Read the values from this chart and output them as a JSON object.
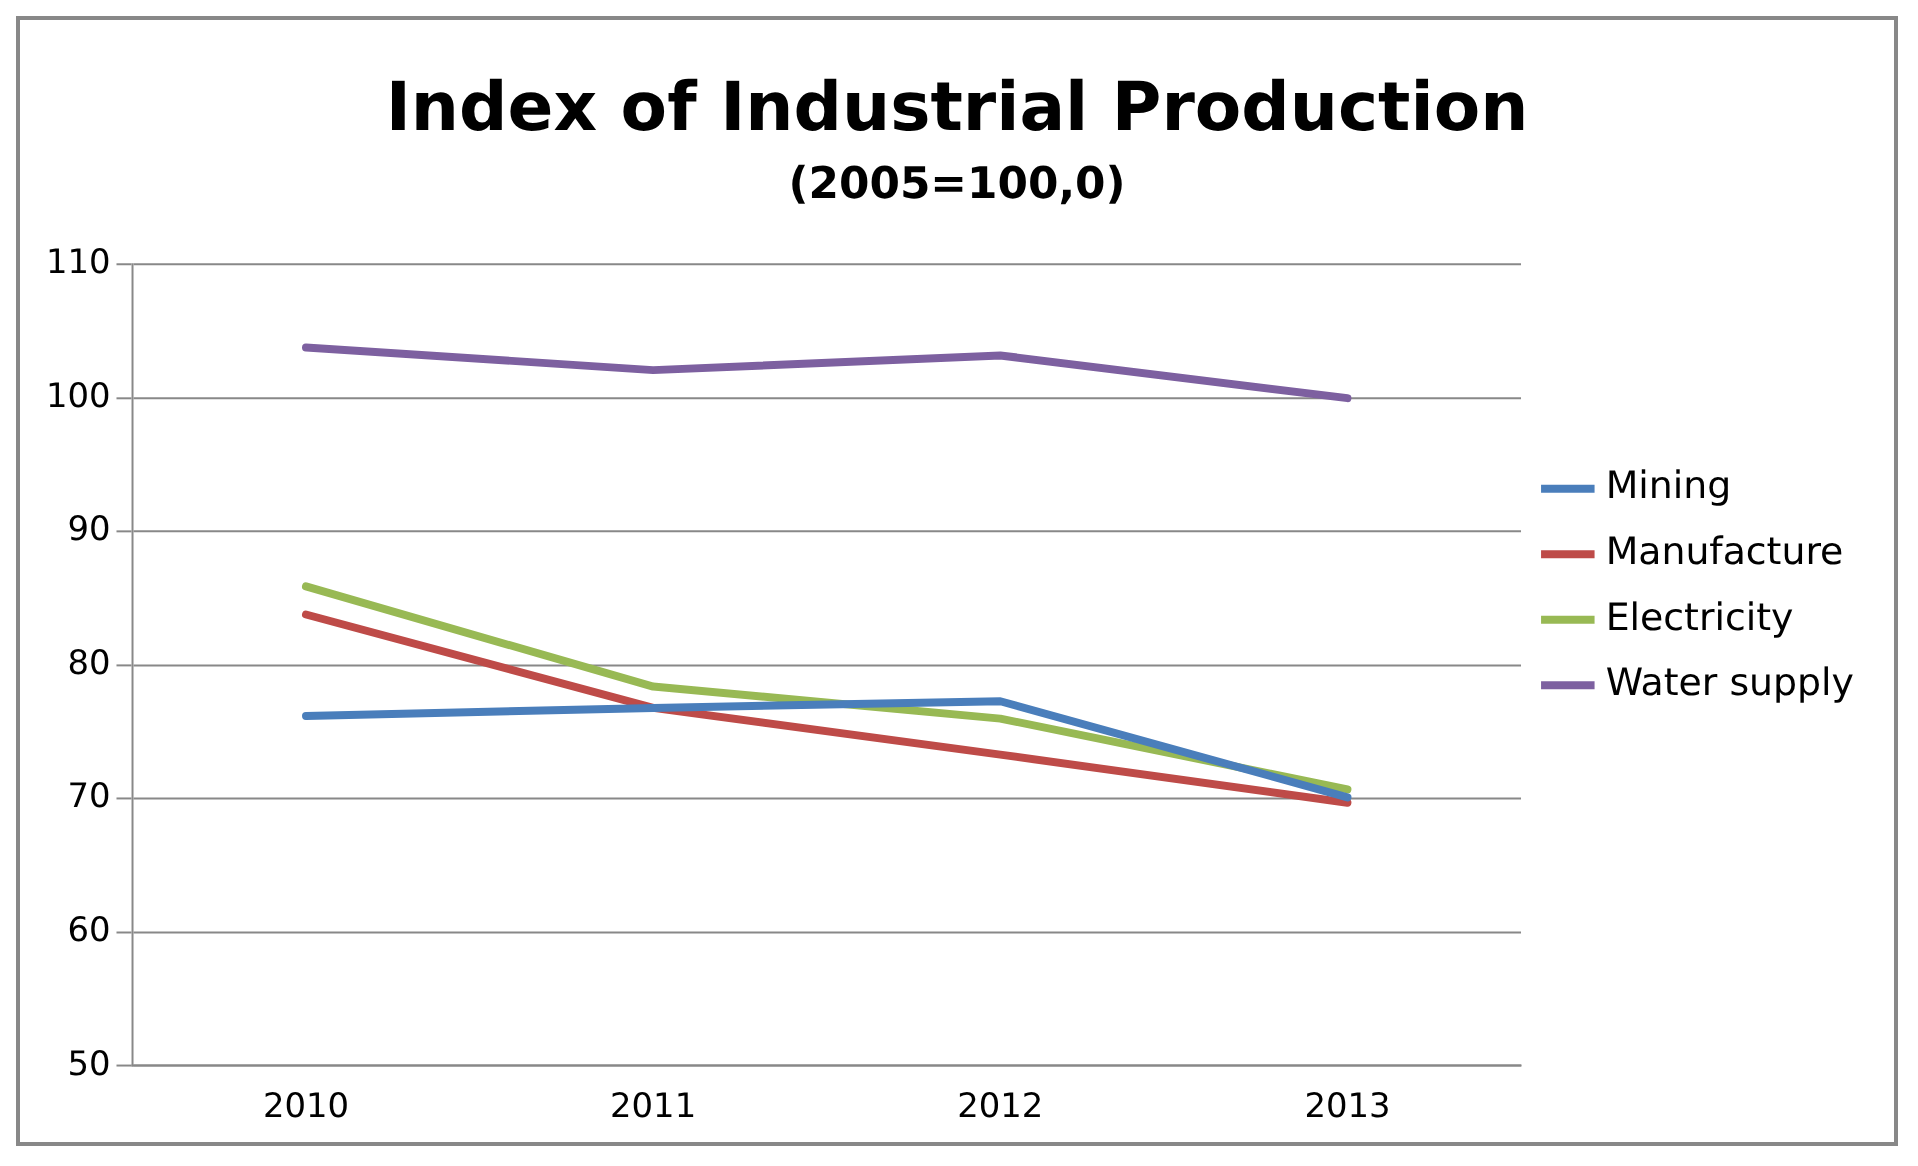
{
  "chart_data": {
    "type": "line",
    "title": "Index of Industrial Production",
    "subtitle": "(2005=100,0)",
    "categories": [
      "2010",
      "2011",
      "2012",
      "2013"
    ],
    "series": [
      {
        "name": "Mining",
        "color": "#4a7ebb",
        "values": [
          76.2,
          76.8,
          77.3,
          70.1
        ]
      },
      {
        "name": "Manufacture",
        "color": "#be4b48",
        "values": [
          83.8,
          76.8,
          73.3,
          69.7
        ]
      },
      {
        "name": "Electricity",
        "color": "#98b954",
        "values": [
          85.9,
          78.4,
          76.0,
          70.7
        ]
      },
      {
        "name": "Water supply",
        "color": "#7d60a0",
        "values": [
          103.8,
          102.1,
          103.2,
          100.0
        ]
      }
    ],
    "ylim": [
      50,
      110
    ],
    "yticks": [
      50,
      60,
      70,
      80,
      90,
      100,
      110
    ],
    "grid": "y",
    "legend": "right",
    "marker": "none",
    "line_style": "solid"
  }
}
